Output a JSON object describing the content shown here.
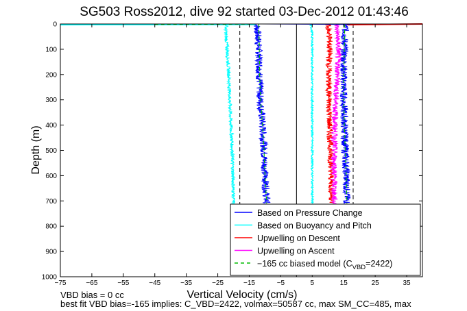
{
  "chart_data": {
    "type": "line",
    "title": "SG503 Ross2012, dive 92 started 03-Dec-2012 01:43:46",
    "xlabel": "Vertical Velocity (cm/s)",
    "ylabel": "Depth (m)",
    "xlim": [
      -75,
      40
    ],
    "ylim": [
      1000,
      0
    ],
    "xticks": [
      -75,
      -65,
      -55,
      -45,
      -35,
      -25,
      -15,
      -5,
      5,
      15,
      25,
      35
    ],
    "yticks": [
      0,
      100,
      200,
      300,
      400,
      500,
      600,
      700,
      800,
      900,
      1000
    ],
    "grid": false,
    "legend_position": "bottom-right",
    "legend_entries": [
      {
        "label": "Based on Pressure Change",
        "color": "#0000ff",
        "style": "solid"
      },
      {
        "label": "Based on Buoyancy and Pitch",
        "color": "#00ffff",
        "style": "solid"
      },
      {
        "label": "Upwelling on Descent",
        "color": "#ff0000",
        "style": "solid"
      },
      {
        "label": "Upwelling on Ascent",
        "color": "#ff00ff",
        "style": "solid"
      },
      {
        "label": "-165 cc biased model (C",
        "label_sub": "VBD",
        "label_tail": "=2422)",
        "color": "#00bb00",
        "style": "dashed"
      }
    ],
    "series": [
      {
        "name": "Based on Pressure Change",
        "color": "#0000ff",
        "noise": 0.55,
        "depth": [
          0,
          5,
          20,
          60,
          100,
          150,
          200,
          300,
          400,
          500,
          600,
          700,
          710
        ],
        "x": [
          -13,
          -12.5,
          -12.5,
          -12.2,
          -12,
          -11.8,
          -11.8,
          -11.5,
          -10.8,
          -10.3,
          -10,
          -9.5,
          -9.5
        ]
      },
      {
        "name": "Based on Pressure Change",
        "color": "#0000ff",
        "noise": 0.55,
        "depth": [
          0,
          5,
          20,
          60,
          100,
          150,
          200,
          300,
          400,
          500,
          600,
          700,
          710
        ],
        "x": [
          15.5,
          15.5,
          15.5,
          15.3,
          15.2,
          15,
          15,
          15,
          15.2,
          15.5,
          15.8,
          16,
          16
        ]
      },
      {
        "name": "Based on Buoyancy and Pitch",
        "color": "#00ffff",
        "noise": 0.25,
        "depth": [
          0,
          20,
          60,
          100,
          200,
          300,
          400,
          500,
          600,
          700,
          710
        ],
        "x": [
          -22,
          -22.5,
          -22.3,
          -22,
          -21.5,
          -21.2,
          -20.8,
          -20.4,
          -20.2,
          -20,
          -20
        ]
      },
      {
        "name": "Based on Buoyancy and Pitch",
        "color": "#00ffff",
        "noise": 0.15,
        "depth": [
          0,
          20,
          60,
          100,
          200,
          300,
          400,
          500,
          600,
          700,
          710
        ],
        "x": [
          4.5,
          4.8,
          5,
          5,
          5,
          5,
          5,
          5,
          5,
          5,
          5
        ]
      },
      {
        "name": "Upwelling on Descent",
        "color": "#ff0000",
        "noise": 0.45,
        "depth": [
          0,
          10,
          50,
          100,
          200,
          300,
          400,
          500,
          600,
          700,
          710
        ],
        "x": [
          10,
          10,
          10.5,
          10.5,
          10.2,
          10.3,
          10.5,
          10.8,
          11,
          11.2,
          11.2
        ]
      },
      {
        "name": "Upwelling on Ascent",
        "color": "#ff00ff",
        "noise": 0.45,
        "depth": [
          0,
          10,
          50,
          100,
          200,
          300,
          400,
          500,
          600,
          700,
          710
        ],
        "x": [
          13,
          12.8,
          13,
          13.3,
          13,
          12.5,
          12.2,
          12,
          12,
          12,
          12
        ]
      },
      {
        "name": "-165 cc biased model",
        "color": "#00bb00",
        "noise": 0,
        "dashed": true,
        "depth": [
          0,
          100,
          200,
          300,
          400,
          500,
          600,
          700,
          710
        ],
        "x": [
          -12,
          -11.8,
          -11.7,
          -11.4,
          -10.8,
          -10.3,
          -10,
          -9.5,
          -9.5
        ]
      },
      {
        "name": "-165 cc biased model",
        "color": "#00bb00",
        "noise": 0,
        "dashed": true,
        "depth": [
          0,
          100,
          200,
          300,
          400,
          500,
          600,
          700,
          710
        ],
        "x": [
          15.3,
          15.2,
          15,
          15,
          15.2,
          15.5,
          15.8,
          16,
          16
        ]
      }
    ],
    "reference_lines": [
      {
        "x": 0,
        "style": "solid",
        "color": "#000000"
      },
      {
        "x": -18,
        "style": "dashed",
        "color": "#000000"
      },
      {
        "x": 18,
        "style": "dashed",
        "color": "#000000"
      }
    ]
  },
  "notes": {
    "vbd_bias": "VBD bias = 0 cc",
    "best_fit": "best fit VBD bias=-165 implies: C_VBD=2422, volmax=50587 cc, max SM_CC=485, max"
  }
}
